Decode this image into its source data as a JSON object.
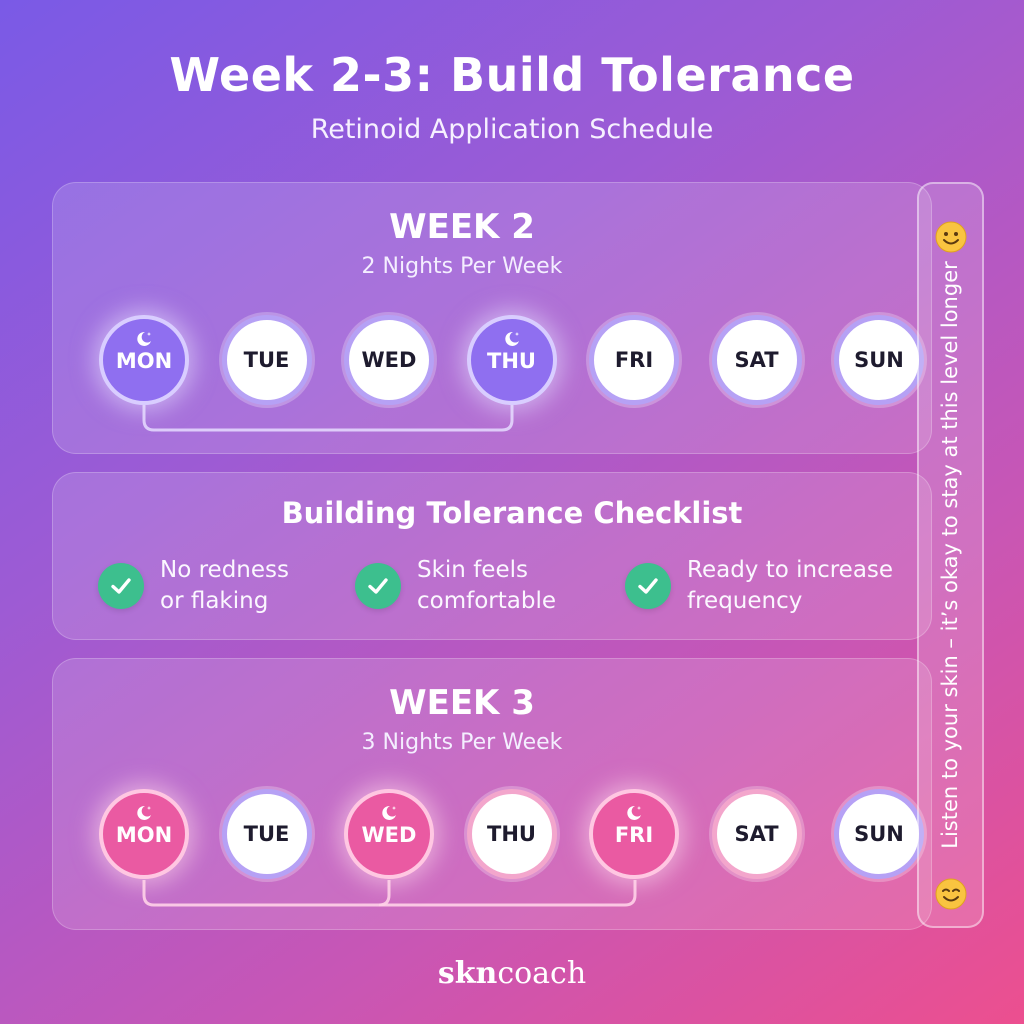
{
  "header": {
    "title": "Week 2-3: Build Tolerance",
    "subtitle": "Retinoid Application Schedule"
  },
  "week2": {
    "title": "WEEK 2",
    "subtitle": "2 Nights Per Week",
    "days": [
      {
        "label": "MON",
        "active": true
      },
      {
        "label": "TUE",
        "active": false
      },
      {
        "label": "WED",
        "active": false
      },
      {
        "label": "THU",
        "active": true
      },
      {
        "label": "FRI",
        "active": false
      },
      {
        "label": "SAT",
        "active": false
      },
      {
        "label": "SUN",
        "active": false
      }
    ]
  },
  "checklist": {
    "title": "Building Tolerance Checklist",
    "items": [
      {
        "line1": "No redness",
        "line2": "or flaking"
      },
      {
        "line1": "Skin feels",
        "line2": "comfortable"
      },
      {
        "line1": "Ready to increase",
        "line2": "frequency"
      }
    ]
  },
  "week3": {
    "title": "WEEK 3",
    "subtitle": "3 Nights Per Week",
    "days": [
      {
        "label": "MON",
        "active": true
      },
      {
        "label": "TUE",
        "active": false
      },
      {
        "label": "WED",
        "active": true
      },
      {
        "label": "THU",
        "active": false
      },
      {
        "label": "FRI",
        "active": true
      },
      {
        "label": "SAT",
        "active": false
      },
      {
        "label": "SUN",
        "active": false
      }
    ]
  },
  "side_note": {
    "text": "Listen to your skin – it’s okay to stay at this level longer",
    "icon_top": "smile-emoji-icon",
    "icon_bottom": "smile-emoji-icon"
  },
  "brand": {
    "bold": "skn",
    "light": "coach"
  },
  "colors": {
    "week2_active": "#8f6ff0",
    "week3_active": "#ea5aa2",
    "check": "#3dbf8e"
  }
}
